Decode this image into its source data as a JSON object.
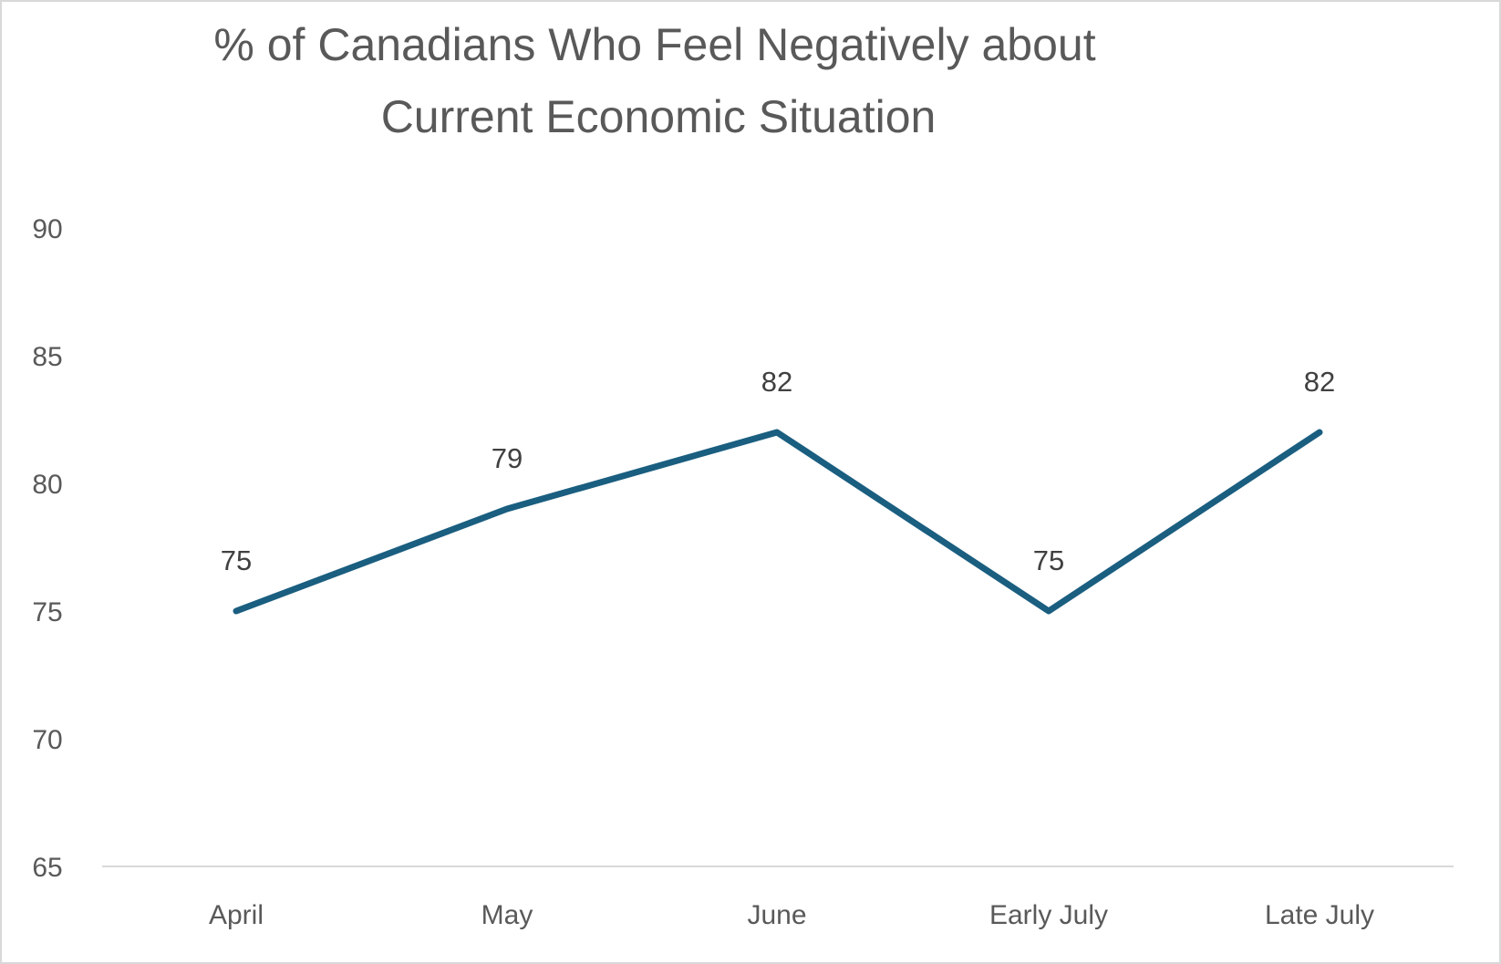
{
  "chart_data": {
    "type": "line",
    "title": [
      "% of Canadians Who Feel Negatively about",
      "Current Economic Situation"
    ],
    "xlabel": "",
    "ylabel": "",
    "categories": [
      "April",
      "May",
      "June",
      "Early July",
      "Late July"
    ],
    "series": [
      {
        "values": [
          75,
          79,
          82,
          75,
          82
        ],
        "color": "#1a5e80"
      }
    ],
    "ylim": [
      65,
      90
    ],
    "yticks": [
      65,
      70,
      75,
      80,
      85,
      90
    ],
    "data_labels": true,
    "grid": false,
    "legend": "none"
  }
}
